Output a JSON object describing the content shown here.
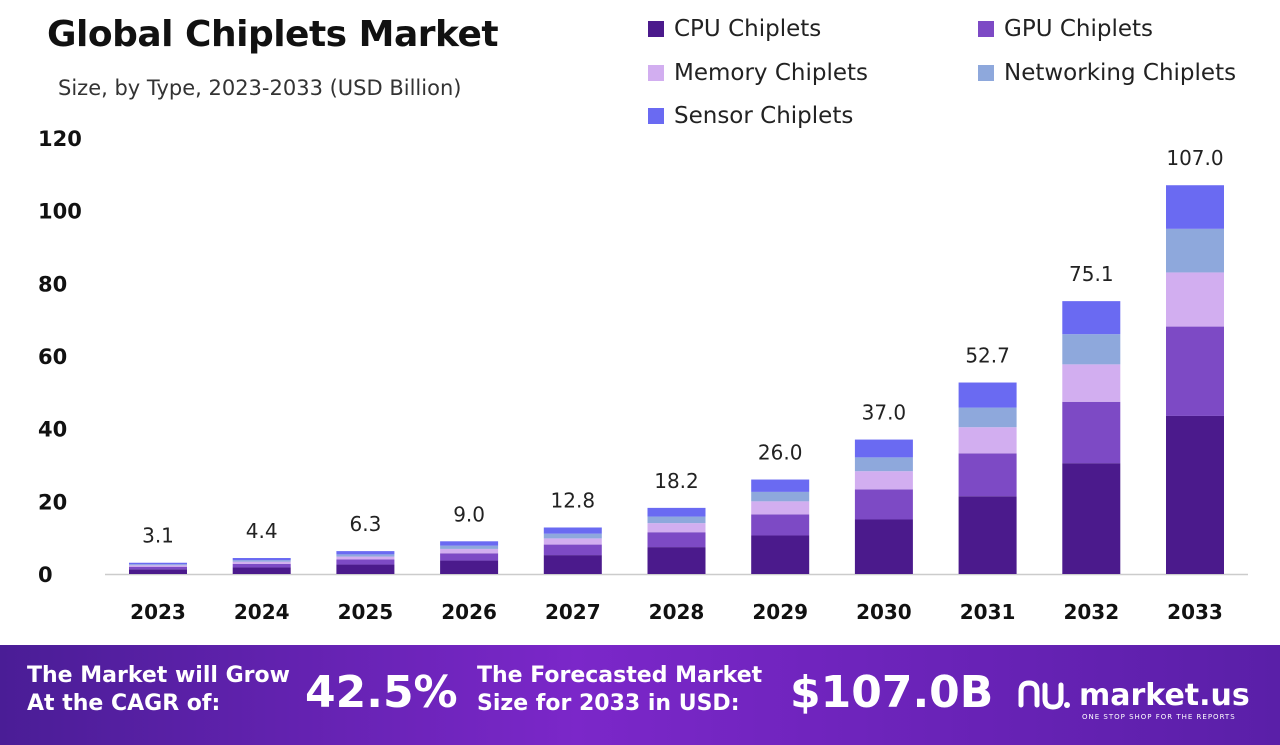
{
  "colors": {
    "cpu": "#4b1a8c",
    "gpu": "#7d4ac5",
    "memory": "#d2aef0",
    "networking": "#8ea8dc",
    "sensor": "#6a6af2",
    "axis": "#cccccc",
    "footer_start": "#4a1d96",
    "footer_end": "#7b27c9"
  },
  "chart_data": {
    "type": "bar",
    "stacked": true,
    "title": "Global Chiplets Market",
    "subtitle": "Size, by Type, 2023-2033 (USD Billion)",
    "categories": [
      "2023",
      "2024",
      "2025",
      "2026",
      "2027",
      "2028",
      "2029",
      "2030",
      "2031",
      "2032",
      "2033"
    ],
    "totals": [
      3.1,
      4.4,
      6.3,
      9.0,
      12.8,
      18.2,
      26.0,
      37.0,
      52.7,
      75.1,
      107.0
    ],
    "total_labels": [
      "3.1",
      "4.4",
      "6.3",
      "9.0",
      "12.8",
      "18.2",
      "26.0",
      "37.0",
      "52.7",
      "75.1",
      "107.0"
    ],
    "series": [
      {
        "name": "CPU Chiplets",
        "color_key": "cpu",
        "values": [
          1.3,
          1.8,
          2.6,
          3.7,
          5.2,
          7.4,
          10.6,
          15.0,
          21.4,
          30.5,
          43.5
        ]
      },
      {
        "name": "GPU Chiplets",
        "color_key": "gpu",
        "values": [
          0.7,
          1.0,
          1.4,
          2.0,
          2.9,
          4.1,
          5.8,
          8.3,
          11.8,
          16.9,
          24.6
        ]
      },
      {
        "name": "Memory Chiplets",
        "color_key": "memory",
        "values": [
          0.4,
          0.6,
          0.8,
          1.2,
          1.7,
          2.5,
          3.6,
          5.0,
          7.2,
          10.3,
          14.9
        ]
      },
      {
        "name": "Networking Chiplets",
        "color_key": "networking",
        "values": [
          0.3,
          0.4,
          0.6,
          0.9,
          1.3,
          1.8,
          2.6,
          3.8,
          5.4,
          8.3,
          12.0
        ]
      },
      {
        "name": "Sensor Chiplets",
        "color_key": "sensor",
        "values": [
          0.4,
          0.6,
          0.9,
          1.2,
          1.7,
          2.4,
          3.4,
          4.9,
          6.9,
          9.1,
          12.0
        ]
      }
    ],
    "y_ticks": [
      0,
      20,
      40,
      60,
      80,
      100,
      120
    ],
    "ylim": [
      0,
      120
    ],
    "grid": false,
    "legend_position": "top-right"
  },
  "footer": {
    "cagr_label_line1": "The Market will Grow",
    "cagr_label_line2": "At the CAGR of:",
    "cagr_value": "42.5%",
    "forecast_label_line1": "The Forecasted Market",
    "forecast_label_line2": "Size for 2033 in USD:",
    "forecast_value": "$107.0B",
    "brand_name": "market.us",
    "brand_tagline": "ONE STOP SHOP FOR THE REPORTS",
    "brand_logo_icon": "market-us-logo-icon"
  }
}
